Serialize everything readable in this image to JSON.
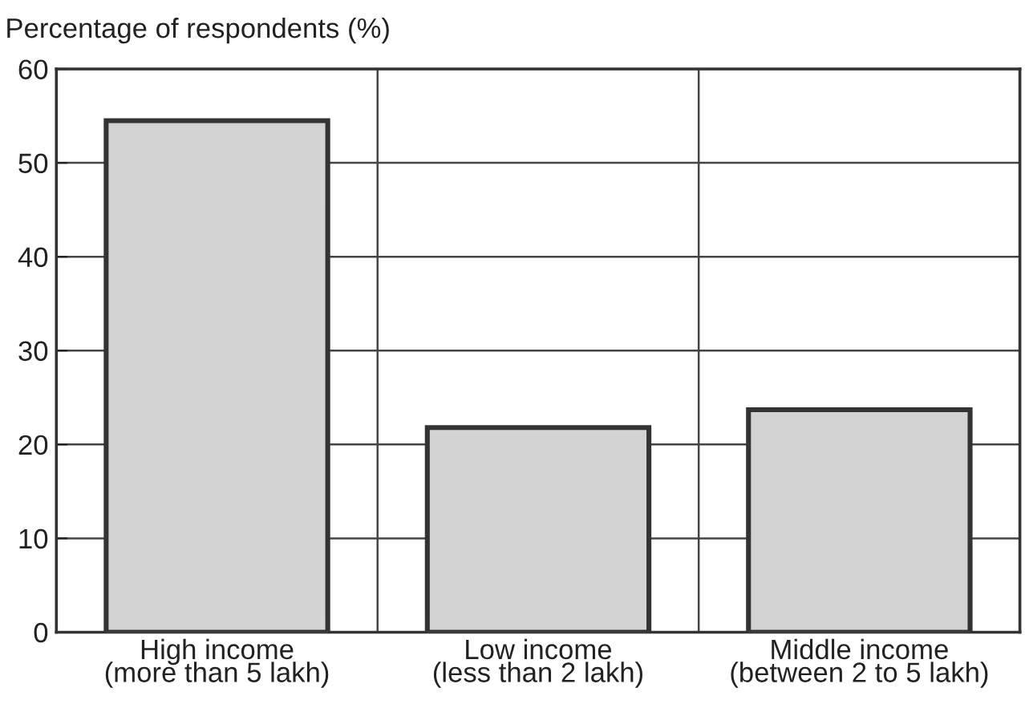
{
  "chart_data": {
    "type": "bar",
    "ylabel": "Percentage of respondents (%)",
    "categories": [
      "High income\n(more than 5 lakh)",
      "Low income\n(less than 2 lakh)",
      "Middle income\n(between 2 to 5 lakh)"
    ],
    "values": [
      54.5,
      21.8,
      23.7
    ],
    "color": "#d3d3d3",
    "ylim": [
      0,
      60
    ],
    "yticks": [
      0,
      10,
      20,
      30,
      40,
      50,
      60
    ],
    "grid": true
  }
}
